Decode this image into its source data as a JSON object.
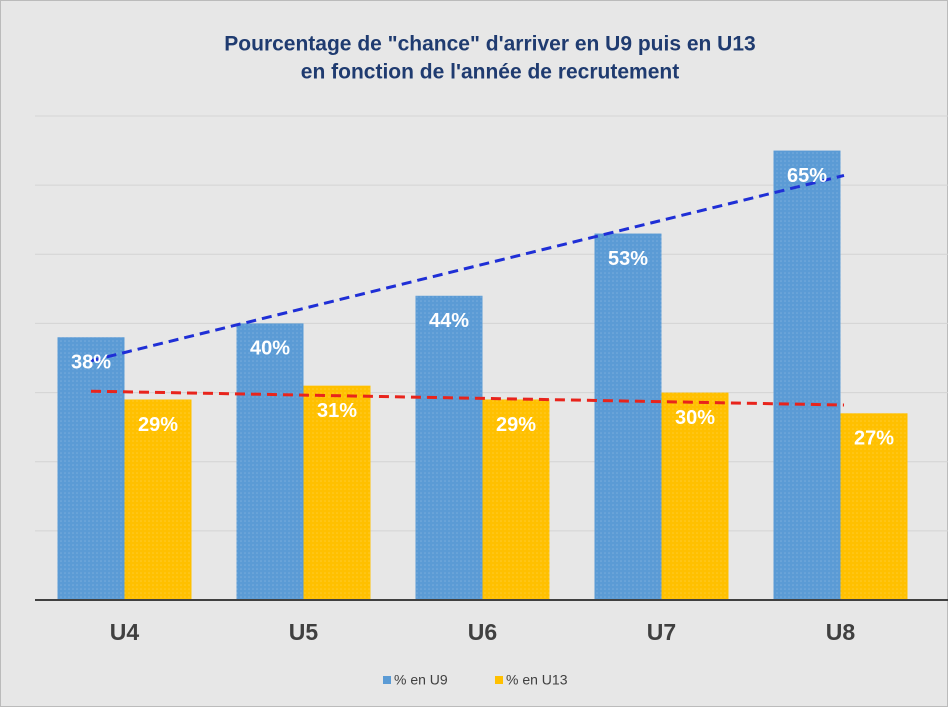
{
  "chart_data": {
    "type": "bar",
    "title": [
      "Pourcentage de \"chance\" d'arriver en U9 puis en U13",
      "en fonction de l'année de recrutement"
    ],
    "categories": [
      "U4",
      "U5",
      "U6",
      "U7",
      "U8"
    ],
    "series": [
      {
        "name": "% en U9",
        "color": "#5b9bd5",
        "trendline_color": "#1f2fd6",
        "values": [
          38,
          40,
          44,
          53,
          65
        ],
        "value_labels": [
          "38%",
          "40%",
          "44%",
          "53%",
          "65%"
        ]
      },
      {
        "name": "% en U13",
        "color": "#ffc000",
        "trendline_color": "#e8241c",
        "values": [
          29,
          31,
          29,
          30,
          27
        ],
        "value_labels": [
          "29%",
          "31%",
          "29%",
          "30%",
          "27%"
        ]
      }
    ],
    "trendline": "linear",
    "ylim": [
      0,
      70
    ],
    "yticks": [
      0,
      10,
      20,
      30,
      40,
      50,
      60,
      70
    ],
    "grid": true,
    "legend": "bottom"
  }
}
